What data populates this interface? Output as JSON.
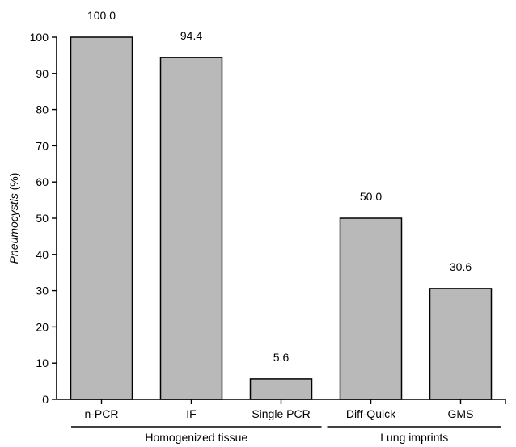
{
  "chart_data": {
    "type": "bar",
    "categories": [
      "n-PCR",
      "IF",
      "Single PCR",
      "Diff-Quick",
      "GMS"
    ],
    "values": [
      100.0,
      94.4,
      5.6,
      50.0,
      30.6
    ],
    "data_labels": [
      "100.0",
      "94.4",
      "5.6",
      "50.0",
      "30.6"
    ],
    "ylabel_italic": "Pneumocystis",
    "ylabel_rest": " (%)",
    "ylim": [
      0,
      100
    ],
    "yticks": [
      0,
      10,
      20,
      30,
      40,
      50,
      60,
      70,
      80,
      90,
      100
    ],
    "grid": false,
    "groups": [
      {
        "label": "Homogenized tissue",
        "categories": [
          "n-PCR",
          "IF",
          "Single PCR"
        ]
      },
      {
        "label": "Lung imprints",
        "categories": [
          "Diff-Quick",
          "GMS"
        ]
      }
    ],
    "bar_color": "#b9b9b9"
  }
}
